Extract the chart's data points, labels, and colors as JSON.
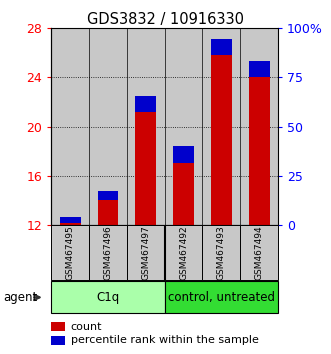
{
  "title": "GDS3832 / 10916330",
  "samples": [
    "GSM467495",
    "GSM467496",
    "GSM467497",
    "GSM467492",
    "GSM467493",
    "GSM467494"
  ],
  "groups": [
    {
      "label": "C1q",
      "indices": [
        0,
        1,
        2
      ],
      "color": "#aaffaa"
    },
    {
      "label": "control, untreated",
      "indices": [
        3,
        4,
        5
      ],
      "color": "#33dd33"
    }
  ],
  "ymin": 12,
  "ymax": 28,
  "yticks_left": [
    12,
    16,
    20,
    24,
    28
  ],
  "yticks_right_vals": [
    0,
    25,
    50,
    75,
    100
  ],
  "yticks_right_labels": [
    "0",
    "25",
    "50",
    "75",
    "100%"
  ],
  "count_values": [
    12.18,
    14.05,
    21.2,
    17.0,
    25.8,
    24.0
  ],
  "percentile_values": [
    0.48,
    0.7,
    1.3,
    1.4,
    1.3,
    1.3
  ],
  "bar_width": 0.55,
  "count_color": "#cc0000",
  "percentile_color": "#0000cc",
  "bar_bg_color": "#c8c8c8",
  "plot_bg_color": "#ffffff",
  "legend_count": "count",
  "legend_percentile": "percentile rank within the sample",
  "agent_label": "agent"
}
